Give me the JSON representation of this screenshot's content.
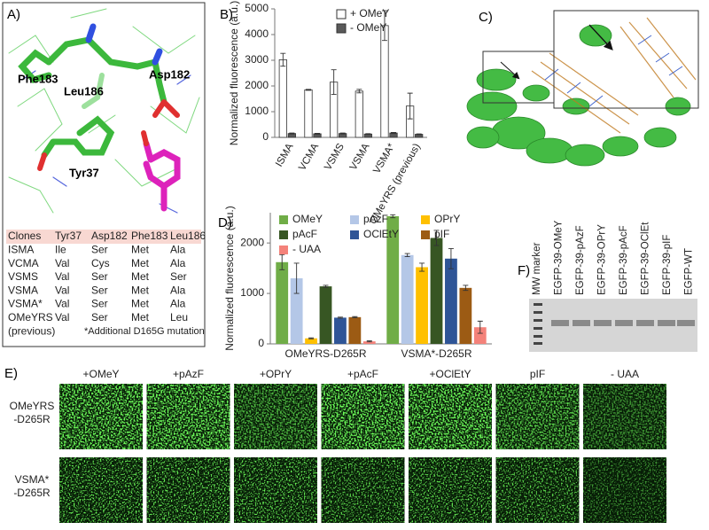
{
  "panel_labels": [
    "A)",
    "B)",
    "C)",
    "D)",
    "E)",
    "F)"
  ],
  "panel_a": {
    "residue_labels": [
      "Phe183",
      "Leu186",
      "Asp182",
      "Tyr37"
    ],
    "table": {
      "header": [
        "Clones",
        "Tyr37",
        "Asp182",
        "Phe183",
        "Leu186"
      ],
      "rows": [
        [
          "ISMA",
          "Ile",
          "Ser",
          "Met",
          "Ala"
        ],
        [
          "VCMA",
          "Val",
          "Cys",
          "Met",
          "Ala"
        ],
        [
          "VSMS",
          "Val",
          "Ser",
          "Met",
          "Ser"
        ],
        [
          "VSMA",
          "Val",
          "Ser",
          "Met",
          "Ala"
        ],
        [
          "VSMA*",
          "Val",
          "Ser",
          "Met",
          "Ala"
        ],
        [
          "OMeYRS",
          "Val",
          "Ser",
          "Met",
          "Leu"
        ]
      ],
      "row_note": "(previous)",
      "footnote": "*Additional D165G mutation"
    }
  },
  "chart_data": [
    {
      "type": "bar",
      "y_label": "Normalized fluorescence (a.u.)",
      "categories": [
        "ISMA",
        "VCMA",
        "VSMS",
        "VSMA",
        "VSMA*",
        "OMeYRS (previous)"
      ],
      "series": [
        {
          "name": "+ OMeY",
          "color": "#ffffff",
          "values": [
            3020,
            1850,
            2150,
            1800,
            4350,
            1220
          ],
          "errors": [
            250,
            20,
            480,
            70,
            580,
            500
          ]
        },
        {
          "name": "- OMeY",
          "color": "#595959",
          "values": [
            150,
            140,
            150,
            130,
            170,
            120
          ],
          "errors": [
            20,
            15,
            20,
            15,
            20,
            15
          ]
        }
      ],
      "ylim": [
        0,
        5000
      ],
      "yticks": [
        0,
        1000,
        2000,
        3000,
        4000,
        5000
      ],
      "legend": "upper right"
    },
    {
      "type": "bar",
      "y_label": "Normalized fluorescence (a.u.)",
      "categories": [
        "OMeYRS-D265R",
        "VSMA*-D265R"
      ],
      "series": [
        {
          "name": "OMeY",
          "color": "#70ad47",
          "values": [
            1620,
            2530
          ],
          "errors": [
            150,
            30
          ]
        },
        {
          "name": "pAzF",
          "color": "#b4c7e7",
          "values": [
            1300,
            1760
          ],
          "errors": [
            300,
            30
          ]
        },
        {
          "name": "OPrY",
          "color": "#ffc000",
          "values": [
            110,
            1520
          ],
          "errors": [
            10,
            80
          ]
        },
        {
          "name": "pAcF",
          "color": "#375623",
          "values": [
            1140,
            2100
          ],
          "errors": [
            20,
            150
          ]
        },
        {
          "name": "OClEtY",
          "color": "#2f5597",
          "values": [
            520,
            1690
          ],
          "errors": [
            10,
            200
          ]
        },
        {
          "name": "pIF",
          "color": "#9c5b14",
          "values": [
            530,
            1110
          ],
          "errors": [
            10,
            50
          ]
        },
        {
          "name": "- UAA",
          "color": "#f4827a",
          "values": [
            50,
            330
          ],
          "errors": [
            10,
            120
          ]
        }
      ],
      "ylim": [
        0,
        2600
      ],
      "yticks": [
        0,
        1000,
        2000
      ],
      "legend": "top"
    }
  ],
  "panel_e": {
    "column_labels": [
      "+OMeY",
      "+pAzF",
      "+OPrY",
      "+pAcF",
      "+OClEtY",
      "pIF",
      "- UAA"
    ],
    "row_labels": [
      [
        "OMeYRS",
        "-D265R"
      ],
      [
        "VSMA*",
        "-D265R"
      ]
    ]
  },
  "panel_f": {
    "lane_labels": [
      "MW marker",
      "EGFP-39-OMeY",
      "EGFP-39-pAzF",
      "EGFP-39-OPrY",
      "EGFP-39-pAcF",
      "EGFP-39-OClEt",
      "EGFP-39-pIF",
      "EGFP-WT"
    ]
  }
}
